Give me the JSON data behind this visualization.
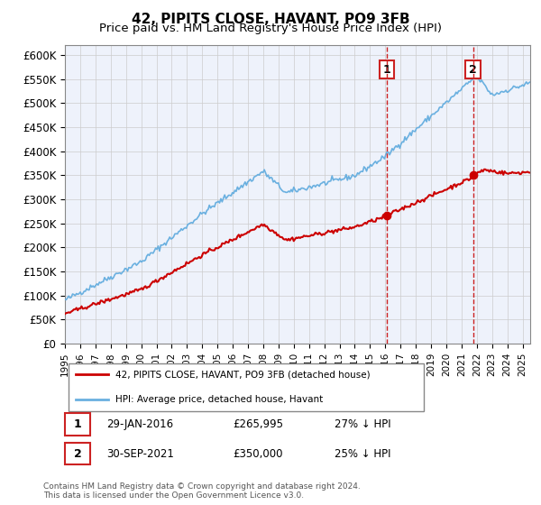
{
  "title": "42, PIPITS CLOSE, HAVANT, PO9 3FB",
  "subtitle": "Price paid vs. HM Land Registry's House Price Index (HPI)",
  "ylabel_ticks": [
    "£0",
    "£50K",
    "£100K",
    "£150K",
    "£200K",
    "£250K",
    "£300K",
    "£350K",
    "£400K",
    "£450K",
    "£500K",
    "£550K",
    "£600K"
  ],
  "ytick_values": [
    0,
    50000,
    100000,
    150000,
    200000,
    250000,
    300000,
    350000,
    400000,
    450000,
    500000,
    550000,
    600000
  ],
  "ylim": [
    0,
    620000
  ],
  "xlim_start": 1995.0,
  "xlim_end": 2025.5,
  "sale1": {
    "date": 2016.08,
    "price": 265995,
    "label": "1",
    "pct": "27% ↓ HPI",
    "date_str": "29-JAN-2016"
  },
  "sale2": {
    "date": 2021.75,
    "price": 350000,
    "label": "2",
    "pct": "25% ↓ HPI",
    "date_str": "30-SEP-2021"
  },
  "legend_line1": "42, PIPITS CLOSE, HAVANT, PO9 3FB (detached house)",
  "legend_line2": "HPI: Average price, detached house, Havant",
  "annotation1_date": "29-JAN-2016",
  "annotation1_price": "£265,995",
  "annotation1_pct": "27% ↓ HPI",
  "annotation2_date": "30-SEP-2021",
  "annotation2_price": "£350,000",
  "annotation2_pct": "25% ↓ HPI",
  "footer": "Contains HM Land Registry data © Crown copyright and database right 2024.\nThis data is licensed under the Open Government Licence v3.0.",
  "hpi_color": "#6ab0e0",
  "sale_color": "#cc0000",
  "marker_box_color": "#cc2222",
  "background_color": "#eef2fb"
}
